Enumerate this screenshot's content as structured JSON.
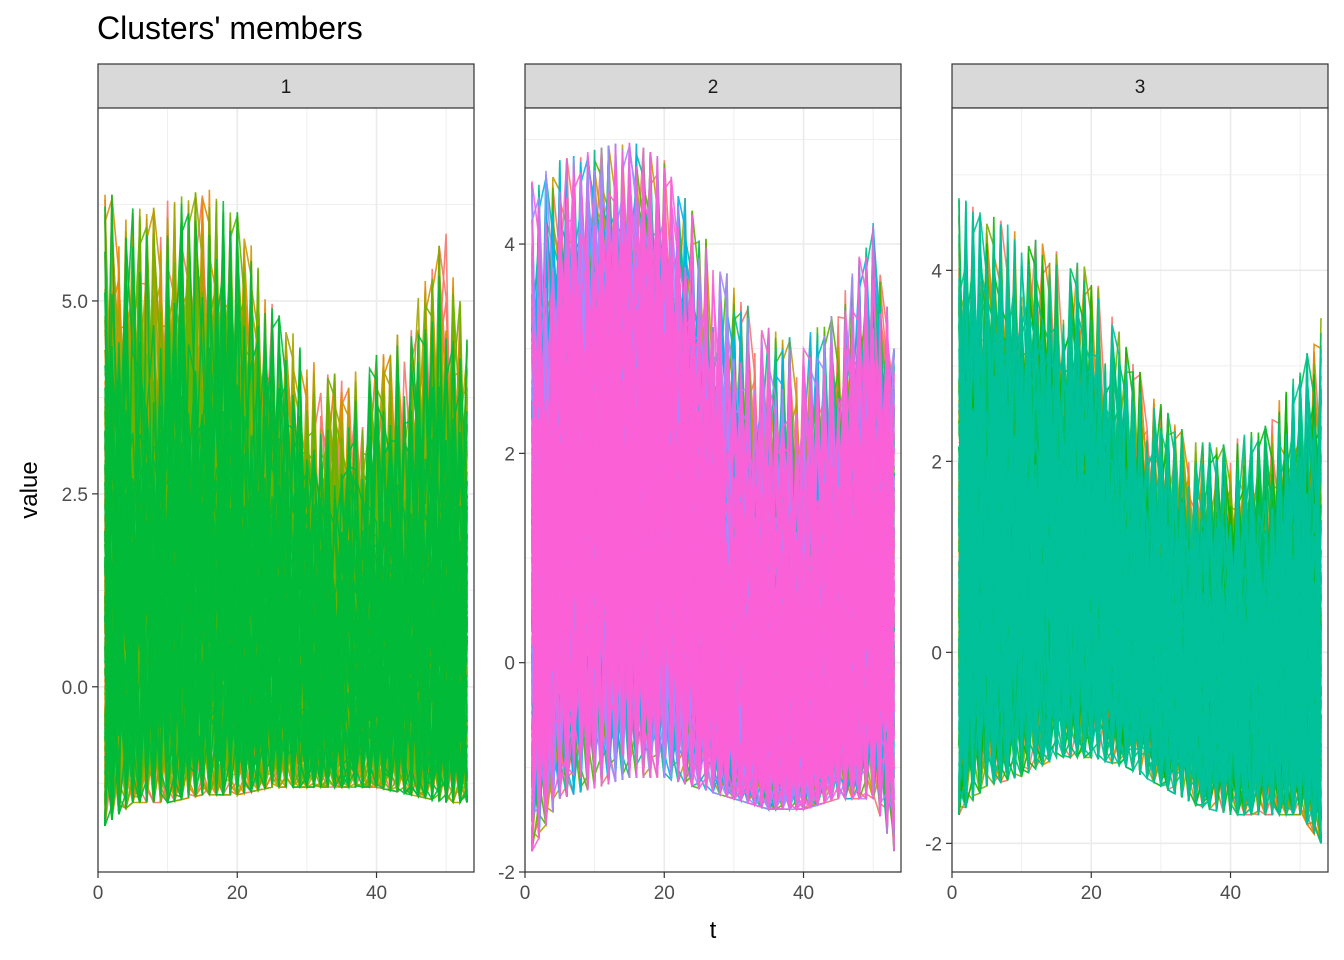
{
  "chart_data": {
    "type": "line",
    "title": "Clusters' members",
    "xlabel": "t",
    "ylabel": "value",
    "grid": true,
    "legend": "none",
    "facets": [
      {
        "label": "1",
        "xlim": [
          0,
          54
        ],
        "ylim": [
          -2.4,
          7.5
        ],
        "x_ticks": [
          0,
          20,
          40
        ],
        "y_ticks": [
          0.0,
          2.5,
          5.0
        ],
        "y_tick_labels": [
          "0.0",
          "2.5",
          "5.0"
        ],
        "series_count": 300,
        "colors": [
          "#F8766D",
          "#E58700",
          "#C99800",
          "#A3A500",
          "#6BB100",
          "#00BA38"
        ],
        "envelope": {
          "x": [
            1,
            5,
            10,
            15,
            20,
            25,
            30,
            35,
            40,
            45,
            50,
            53
          ],
          "upper": [
            6.5,
            6.2,
            6.3,
            6.5,
            6.2,
            5.0,
            4.3,
            4.0,
            4.3,
            4.8,
            6.0,
            4.5
          ],
          "lower": [
            -1.8,
            -1.5,
            -1.5,
            -1.4,
            -1.4,
            -1.3,
            -1.3,
            -1.3,
            -1.3,
            -1.4,
            -1.5,
            -1.5
          ],
          "median": [
            0.8,
            1.0,
            1.0,
            1.1,
            1.0,
            0.7,
            0.4,
            0.3,
            0.4,
            0.5,
            0.8,
            0.7
          ]
        }
      },
      {
        "label": "2",
        "xlim": [
          0,
          54
        ],
        "ylim": [
          -2.0,
          5.3
        ],
        "x_ticks": [
          0,
          20,
          40
        ],
        "y_ticks": [
          -2,
          0,
          2,
          4
        ],
        "y_tick_labels": [
          "-2",
          "0",
          "2",
          "4"
        ],
        "series_count": 400,
        "colors": [
          "#F8766D",
          "#C49A00",
          "#53B400",
          "#00C094",
          "#00B6EB",
          "#A58AFF",
          "#FB61D7"
        ],
        "envelope": {
          "x": [
            1,
            5,
            10,
            15,
            20,
            25,
            30,
            35,
            40,
            45,
            50,
            53
          ],
          "upper": [
            4.6,
            4.8,
            4.9,
            5.0,
            4.8,
            4.2,
            3.6,
            3.2,
            3.1,
            3.4,
            4.2,
            3.0
          ],
          "lower": [
            -1.8,
            -1.3,
            -1.2,
            -1.1,
            -1.1,
            -1.2,
            -1.3,
            -1.4,
            -1.4,
            -1.3,
            -1.3,
            -1.8
          ],
          "median": [
            0.6,
            1.3,
            1.6,
            1.7,
            1.5,
            0.8,
            0.2,
            -0.2,
            -0.2,
            0.2,
            0.8,
            0.6
          ]
        }
      },
      {
        "label": "3",
        "xlim": [
          0,
          54
        ],
        "ylim": [
          -2.3,
          5.7
        ],
        "x_ticks": [
          0,
          20,
          40
        ],
        "y_ticks": [
          -2,
          0,
          2,
          4
        ],
        "y_tick_labels": [
          "-2",
          "0",
          "2",
          "4"
        ],
        "series_count": 300,
        "colors": [
          "#F8766D",
          "#E58700",
          "#7CAE00",
          "#0CB702",
          "#00BE67",
          "#00C19A"
        ],
        "envelope": {
          "x": [
            1,
            5,
            10,
            15,
            20,
            25,
            30,
            35,
            40,
            45,
            50,
            53
          ],
          "upper": [
            4.8,
            4.6,
            4.4,
            4.2,
            4.0,
            3.2,
            2.6,
            2.2,
            2.2,
            2.4,
            3.0,
            3.5
          ],
          "lower": [
            -1.7,
            -1.4,
            -1.3,
            -1.1,
            -1.1,
            -1.2,
            -1.4,
            -1.6,
            -1.7,
            -1.7,
            -1.7,
            -2.0
          ],
          "median": [
            0.7,
            0.9,
            0.9,
            0.9,
            0.8,
            0.4,
            0.0,
            -0.2,
            -0.3,
            -0.3,
            -0.2,
            -0.3
          ]
        }
      }
    ]
  }
}
